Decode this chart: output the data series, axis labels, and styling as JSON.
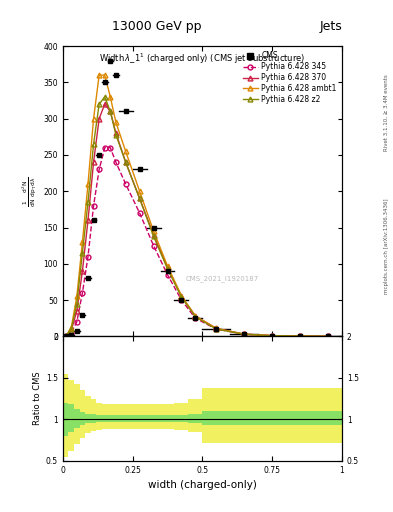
{
  "title_top": "13000 GeV pp",
  "title_right": "Jets",
  "plot_title": "Width λ_1¹ (charged only) (CMS jet substructure)",
  "xlabel": "width (charged-only)",
  "ylabel_lines": [
    "mathrm d²N",
    "mathrm d p₁ mathrm d lambda"
  ],
  "ylabel_ratio": "Ratio to CMS",
  "right_label_top": "Rivet 3.1.10, ≥ 3.4M events",
  "right_label_bot": "mcplots.cern.ch [arXiv:1306.3436]",
  "watermark": "CMS_2021_I1920187",
  "x_bins": [
    0.0,
    0.02,
    0.04,
    0.06,
    0.08,
    0.1,
    0.12,
    0.14,
    0.16,
    0.18,
    0.2,
    0.25,
    0.3,
    0.35,
    0.4,
    0.45,
    0.5,
    0.6,
    0.7,
    0.8,
    0.9,
    1.0
  ],
  "cms_y": [
    0,
    2,
    8,
    30,
    80,
    160,
    250,
    350,
    380,
    360,
    310,
    230,
    150,
    90,
    50,
    25,
    10,
    3,
    1,
    0.3,
    0.1
  ],
  "p345_y": [
    0,
    5,
    20,
    60,
    110,
    180,
    230,
    260,
    260,
    240,
    210,
    170,
    125,
    85,
    50,
    25,
    10,
    3,
    1,
    0.3,
    0.1
  ],
  "p370_y": [
    0,
    8,
    35,
    90,
    160,
    240,
    300,
    320,
    310,
    280,
    240,
    190,
    140,
    95,
    55,
    28,
    11,
    3,
    1,
    0.3,
    0.1
  ],
  "pambt1_y": [
    0,
    12,
    55,
    130,
    210,
    300,
    360,
    360,
    330,
    295,
    255,
    200,
    145,
    97,
    56,
    28,
    11,
    3,
    1,
    0.3,
    0.1
  ],
  "pz2_y": [
    0,
    10,
    45,
    115,
    185,
    265,
    320,
    330,
    310,
    278,
    240,
    190,
    138,
    93,
    54,
    27,
    10,
    3,
    1,
    0.3,
    0.1
  ],
  "ratio_x_edges": [
    0.0,
    0.02,
    0.04,
    0.06,
    0.08,
    0.1,
    0.12,
    0.14,
    0.16,
    0.18,
    0.2,
    0.25,
    0.3,
    0.35,
    0.4,
    0.45,
    0.5,
    0.6,
    0.7,
    0.8,
    0.9,
    1.0
  ],
  "green_inner_low": [
    0.8,
    0.85,
    0.9,
    0.93,
    0.95,
    0.96,
    0.97,
    0.97,
    0.97,
    0.97,
    0.97,
    0.97,
    0.97,
    0.97,
    0.97,
    0.96,
    0.93,
    0.93,
    0.93,
    0.93,
    0.93
  ],
  "green_inner_high": [
    1.2,
    1.18,
    1.12,
    1.09,
    1.07,
    1.06,
    1.05,
    1.05,
    1.05,
    1.05,
    1.05,
    1.05,
    1.05,
    1.05,
    1.05,
    1.06,
    1.1,
    1.1,
    1.1,
    1.1,
    1.1
  ],
  "yellow_outer_low": [
    0.55,
    0.62,
    0.7,
    0.77,
    0.83,
    0.86,
    0.87,
    0.88,
    0.88,
    0.88,
    0.88,
    0.88,
    0.88,
    0.88,
    0.87,
    0.85,
    0.72,
    0.72,
    0.72,
    0.72,
    0.72
  ],
  "yellow_outer_high": [
    1.55,
    1.48,
    1.42,
    1.35,
    1.28,
    1.24,
    1.2,
    1.18,
    1.18,
    1.18,
    1.18,
    1.18,
    1.18,
    1.18,
    1.2,
    1.24,
    1.38,
    1.38,
    1.38,
    1.38,
    1.38
  ],
  "color_cms": "#000000",
  "color_p345": "#cc0066",
  "color_p370": "#cc2244",
  "color_pambt1": "#dd8800",
  "color_pz2": "#888800",
  "color_green": "#66dd66",
  "color_yellow": "#eeee44",
  "ylim_main": [
    0,
    400
  ],
  "ylim_ratio": [
    0.5,
    2.0
  ],
  "xlim": [
    0.0,
    1.0
  ],
  "yticks_main": [
    0,
    50,
    100,
    150,
    200,
    250,
    300,
    350,
    400
  ],
  "ytick_labels_main": [
    "0",
    "50",
    "100",
    "150",
    "200",
    "250",
    "300",
    "350",
    "400"
  ]
}
